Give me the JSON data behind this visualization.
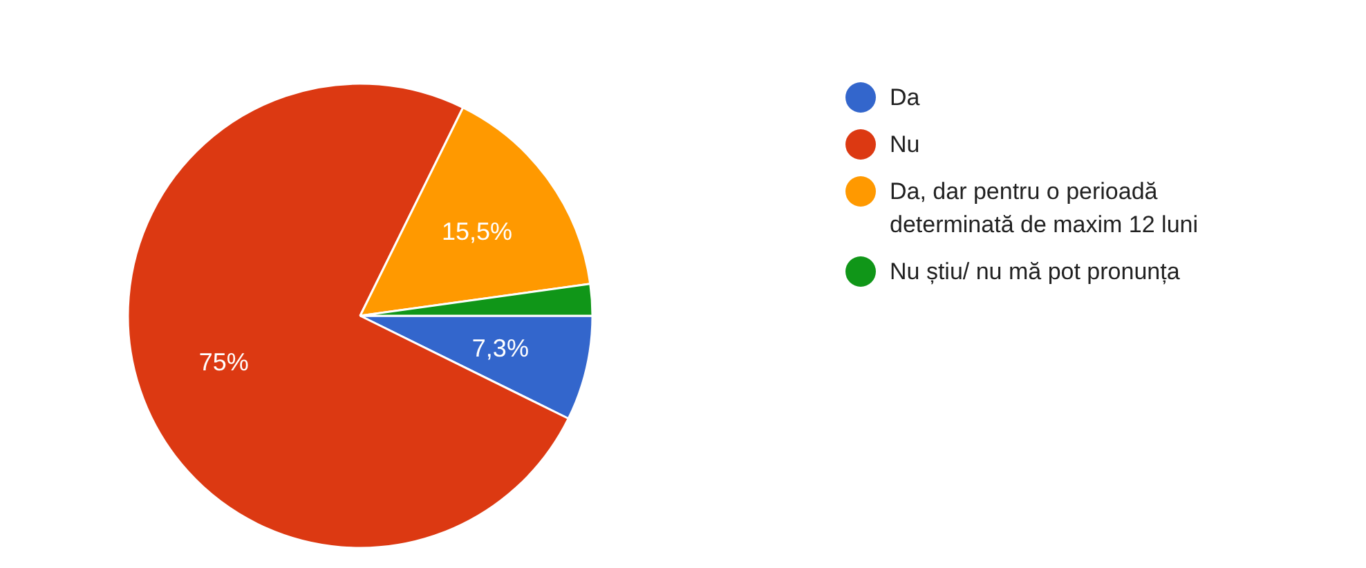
{
  "chart_data": {
    "type": "pie",
    "categories": [
      "Da",
      "Nu",
      "Da, dar pentru o perioadă determinată de maxim 12 luni",
      "Nu știu/ nu mă pot pronunța"
    ],
    "values": [
      7.3,
      75,
      15.5,
      2.2
    ],
    "colors": [
      "#3366cc",
      "#dc3912",
      "#ff9900",
      "#109618"
    ],
    "value_labels": [
      "7,3%",
      "75%",
      "15,5%",
      null
    ],
    "legend": "right"
  }
}
